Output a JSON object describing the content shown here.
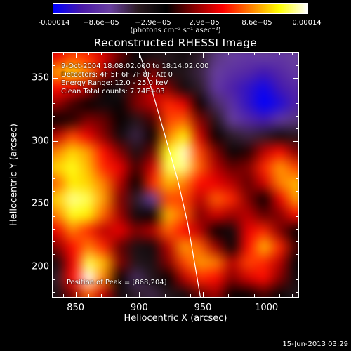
{
  "colorbar": {
    "tick_labels": [
      "-0.00014",
      "−8.6e−05",
      "−2.9e−05",
      "2.9e−05",
      "8.6e−05",
      "0.00014"
    ],
    "unit_label": "(photons cm⁻² s⁻¹ asec⁻²)",
    "range": [
      -0.00014,
      0.00014
    ],
    "colors": [
      "#0000ff",
      "#4a1aa8",
      "#6a40a0",
      "#2a1a20",
      "#000000",
      "#8a0000",
      "#ff0000",
      "#ff8000",
      "#ffff00",
      "#ffffff"
    ]
  },
  "chart_data": {
    "type": "heatmap",
    "title": "Reconstructed RHESSI Image",
    "xlabel": "Heliocentric X (arcsec)",
    "ylabel": "Heliocentric Y (arcsec)",
    "xlim": [
      832,
      1025
    ],
    "ylim": [
      176,
      370
    ],
    "xticks": [
      850,
      900,
      950,
      1000
    ],
    "yticks": [
      200,
      250,
      300,
      350
    ],
    "annotations": {
      "line1": "9-Oct-2004 18:08:02.000 to 18:14:02.000",
      "line2": "Detectors: 4F 5F 6F 7F 8F, Att 0",
      "line3": "Energy Range: 12.0 - 25.0 keV",
      "line4": "Clean     Total counts: 7.74E+03",
      "peak": "Position of Peak = [868,204]"
    },
    "peak_position": [
      868,
      204
    ],
    "grid_x": [
      836,
      848,
      860,
      872,
      884,
      896,
      908,
      920,
      932,
      944,
      956,
      968,
      980,
      992,
      1004,
      1016
    ],
    "grid_y": [
      364,
      352,
      340,
      328,
      316,
      304,
      292,
      280,
      268,
      256,
      244,
      232,
      220,
      208,
      196,
      184
    ],
    "values": [
      [
        0.3,
        0.45,
        0.4,
        0.25,
        0.05,
        -0.15,
        -0.25,
        -0.3,
        -0.2,
        -0.35,
        -0.5,
        -0.55,
        -0.6,
        -0.55,
        -0.6,
        -0.55
      ],
      [
        0.6,
        0.7,
        0.55,
        0.2,
        -0.05,
        -0.2,
        0.1,
        -0.25,
        -0.3,
        -0.4,
        -0.55,
        -0.65,
        -0.7,
        -0.8,
        -0.7,
        -0.6
      ],
      [
        0.35,
        0.3,
        0.2,
        -0.1,
        -0.3,
        0.05,
        0.25,
        0.1,
        -0.2,
        -0.35,
        -0.6,
        -0.75,
        -0.85,
        -0.95,
        -0.8,
        -0.7
      ],
      [
        0.15,
        0.0,
        -0.1,
        -0.2,
        -0.15,
        0.1,
        0.2,
        0.4,
        0.3,
        -0.1,
        -0.45,
        -0.65,
        -0.85,
        -1.0,
        -0.9,
        -0.75
      ],
      [
        -0.1,
        -0.05,
        0.1,
        0.05,
        -0.1,
        -0.3,
        0.0,
        0.45,
        0.5,
        0.1,
        -0.3,
        -0.55,
        -0.7,
        -0.8,
        -0.6,
        -0.5
      ],
      [
        0.2,
        0.45,
        0.3,
        0.1,
        -0.2,
        -0.4,
        -0.1,
        0.55,
        0.75,
        0.25,
        -0.1,
        -0.35,
        -0.4,
        -0.35,
        -0.2,
        -0.3
      ],
      [
        0.55,
        0.7,
        0.6,
        0.35,
        0.1,
        -0.25,
        0.05,
        0.8,
        0.95,
        0.45,
        0.1,
        -0.15,
        -0.05,
        0.2,
        0.35,
        0.1
      ],
      [
        0.7,
        0.8,
        0.65,
        0.4,
        0.3,
        0.0,
        0.25,
        0.85,
        0.9,
        0.5,
        0.2,
        0.05,
        0.1,
        0.4,
        0.6,
        0.45
      ],
      [
        0.5,
        0.75,
        0.7,
        0.55,
        0.2,
        -0.1,
        0.4,
        0.65,
        0.55,
        0.35,
        0.3,
        0.2,
        0.05,
        0.25,
        0.55,
        0.65
      ],
      [
        0.7,
        0.9,
        0.85,
        0.6,
        0.1,
        -0.35,
        -0.55,
        0.45,
        0.45,
        0.2,
        0.5,
        0.4,
        0.1,
        -0.1,
        0.3,
        0.6
      ],
      [
        0.55,
        0.8,
        0.75,
        0.5,
        0.15,
        -0.2,
        -0.1,
        0.65,
        0.5,
        0.1,
        0.25,
        0.15,
        0.2,
        0.05,
        0.1,
        0.35
      ],
      [
        0.3,
        0.55,
        0.4,
        0.2,
        0.3,
        0.1,
        0.2,
        0.5,
        0.35,
        0.2,
        -0.1,
        -0.2,
        0.3,
        0.4,
        0.1,
        -0.1
      ],
      [
        0.1,
        0.35,
        0.55,
        0.4,
        0.05,
        -0.25,
        -0.2,
        0.2,
        0.6,
        0.5,
        0.15,
        -0.15,
        0.35,
        0.65,
        0.4,
        0.0
      ],
      [
        -0.2,
        0.3,
        0.85,
        0.65,
        0.1,
        -0.3,
        -0.25,
        0.1,
        0.45,
        0.6,
        0.55,
        0.2,
        0.45,
        0.4,
        0.2,
        -0.15
      ],
      [
        -0.35,
        0.35,
        1.0,
        0.55,
        -0.1,
        -0.45,
        -0.3,
        -0.1,
        0.2,
        0.4,
        0.35,
        0.1,
        0.25,
        0.35,
        0.1,
        -0.2
      ],
      [
        -0.25,
        0.1,
        0.5,
        0.2,
        -0.2,
        -0.35,
        -0.4,
        -0.3,
        -0.2,
        0.05,
        0.15,
        -0.1,
        -0.1,
        0.0,
        -0.15,
        -0.3
      ]
    ],
    "limb": [
      [
        900,
        370
      ],
      [
        910,
        340
      ],
      [
        920,
        305
      ],
      [
        930,
        270
      ],
      [
        938,
        235
      ],
      [
        944,
        200
      ],
      [
        948,
        176
      ]
    ],
    "grid": false
  },
  "footer": {
    "date": "15-Jun-2013 03:29"
  }
}
